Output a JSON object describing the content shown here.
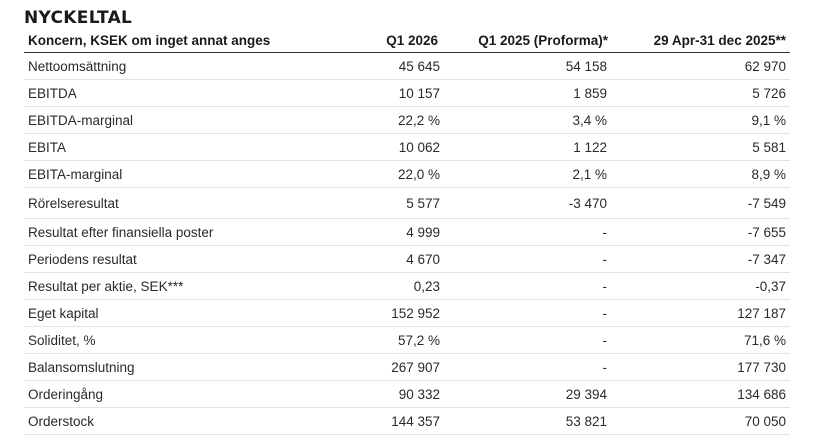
{
  "title": "NYCKELTAL",
  "table": {
    "headers": [
      "Koncern, KSEK om inget annat anges",
      "Q1 2026",
      "Q1 2025 (Proforma)*",
      "29 Apr-31 dec 2025**"
    ],
    "rows": [
      [
        "Nettoomsättning",
        "45 645",
        "54 158",
        "62 970"
      ],
      [
        "EBITDA",
        "10 157",
        "1 859",
        "5 726"
      ],
      [
        "EBITDA-marginal",
        "22,2 %",
        "3,4 %",
        "9,1 %"
      ],
      [
        "EBITA",
        "10 062",
        "1 122",
        "5 581"
      ],
      [
        "EBITA-marginal",
        "22,0 %",
        "2,1 %",
        "8,9 %"
      ],
      [
        "Rörelseresultat",
        "5 577",
        "-3 470",
        "-7 549"
      ],
      [
        "Resultat efter finansiella poster",
        "4 999",
        "-",
        "-7 655"
      ],
      [
        "Periodens resultat",
        "4 670",
        "-",
        "-7 347"
      ],
      [
        "Resultat per aktie, SEK***",
        "0,23",
        "-",
        "-0,37"
      ],
      [
        "Eget kapital",
        "152 952",
        "-",
        "127 187"
      ],
      [
        "Soliditet, %",
        "57,2 %",
        "-",
        "71,6 %"
      ],
      [
        "Balansomslutning",
        "267 907",
        "-",
        "177 730"
      ],
      [
        "Orderingång",
        "90 332",
        "29 394",
        "134 686"
      ],
      [
        "Orderstock",
        "144 357",
        "53 821",
        "70 050"
      ]
    ]
  }
}
